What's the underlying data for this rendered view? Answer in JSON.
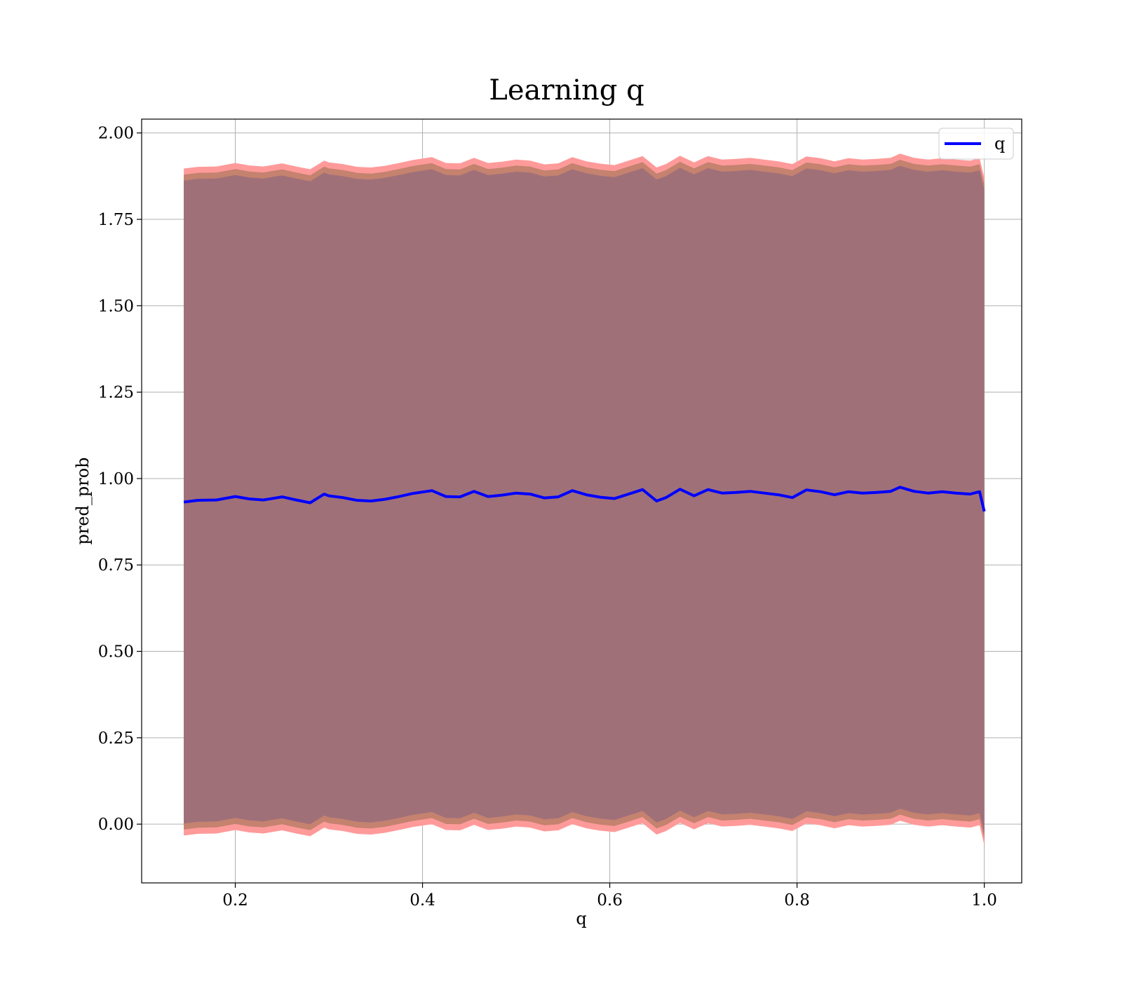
{
  "chart_data": {
    "type": "line",
    "title": "Learning q",
    "xlabel": "q",
    "ylabel": "pred_prob",
    "xlim": [
      0.1,
      1.04
    ],
    "ylim": [
      -0.17,
      2.04
    ],
    "xticks": [
      0.2,
      0.4,
      0.6,
      0.8,
      1.0
    ],
    "xtick_labels": [
      "0.2",
      "0.4",
      "0.6",
      "0.8",
      "1.0"
    ],
    "yticks": [
      0.0,
      0.25,
      0.5,
      0.75,
      1.0,
      1.25,
      1.5,
      1.75,
      2.0
    ],
    "ytick_labels": [
      "0.00",
      "0.25",
      "0.50",
      "0.75",
      "1.00",
      "1.25",
      "1.50",
      "1.75",
      "2.00"
    ],
    "grid": true,
    "legend_position": "top-right",
    "x": [
      0.145,
      0.16,
      0.18,
      0.2,
      0.215,
      0.23,
      0.25,
      0.265,
      0.28,
      0.295,
      0.3,
      0.315,
      0.33,
      0.345,
      0.36,
      0.375,
      0.39,
      0.41,
      0.425,
      0.44,
      0.455,
      0.47,
      0.485,
      0.5,
      0.515,
      0.53,
      0.545,
      0.56,
      0.575,
      0.59,
      0.605,
      0.62,
      0.635,
      0.65,
      0.66,
      0.675,
      0.69,
      0.705,
      0.72,
      0.735,
      0.75,
      0.765,
      0.78,
      0.795,
      0.81,
      0.825,
      0.84,
      0.855,
      0.87,
      0.885,
      0.9,
      0.91,
      0.925,
      0.94,
      0.955,
      0.97,
      0.985,
      0.995,
      1.0
    ],
    "series": [
      {
        "name": "q",
        "color": "#0000ff",
        "values": [
          0.932,
          0.937,
          0.938,
          0.948,
          0.941,
          0.938,
          0.947,
          0.938,
          0.93,
          0.955,
          0.95,
          0.945,
          0.937,
          0.935,
          0.94,
          0.948,
          0.957,
          0.965,
          0.948,
          0.947,
          0.963,
          0.948,
          0.952,
          0.958,
          0.955,
          0.944,
          0.947,
          0.965,
          0.953,
          0.946,
          0.942,
          0.955,
          0.968,
          0.935,
          0.945,
          0.969,
          0.95,
          0.968,
          0.958,
          0.96,
          0.963,
          0.958,
          0.953,
          0.945,
          0.967,
          0.962,
          0.953,
          0.962,
          0.958,
          0.96,
          0.963,
          0.975,
          0.963,
          0.958,
          0.962,
          0.958,
          0.955,
          0.962,
          0.905
        ]
      }
    ],
    "band_outer_offset": 0.965,
    "band_inner_offset": 0.93,
    "colors": {
      "line": "#0000ff",
      "band_outer": "#ff9a9a",
      "band_mid": "#c4826f",
      "band_inner": "#a07079",
      "grid": "#b0b0b0",
      "frame": "#000000",
      "background": "#ffffff"
    }
  }
}
